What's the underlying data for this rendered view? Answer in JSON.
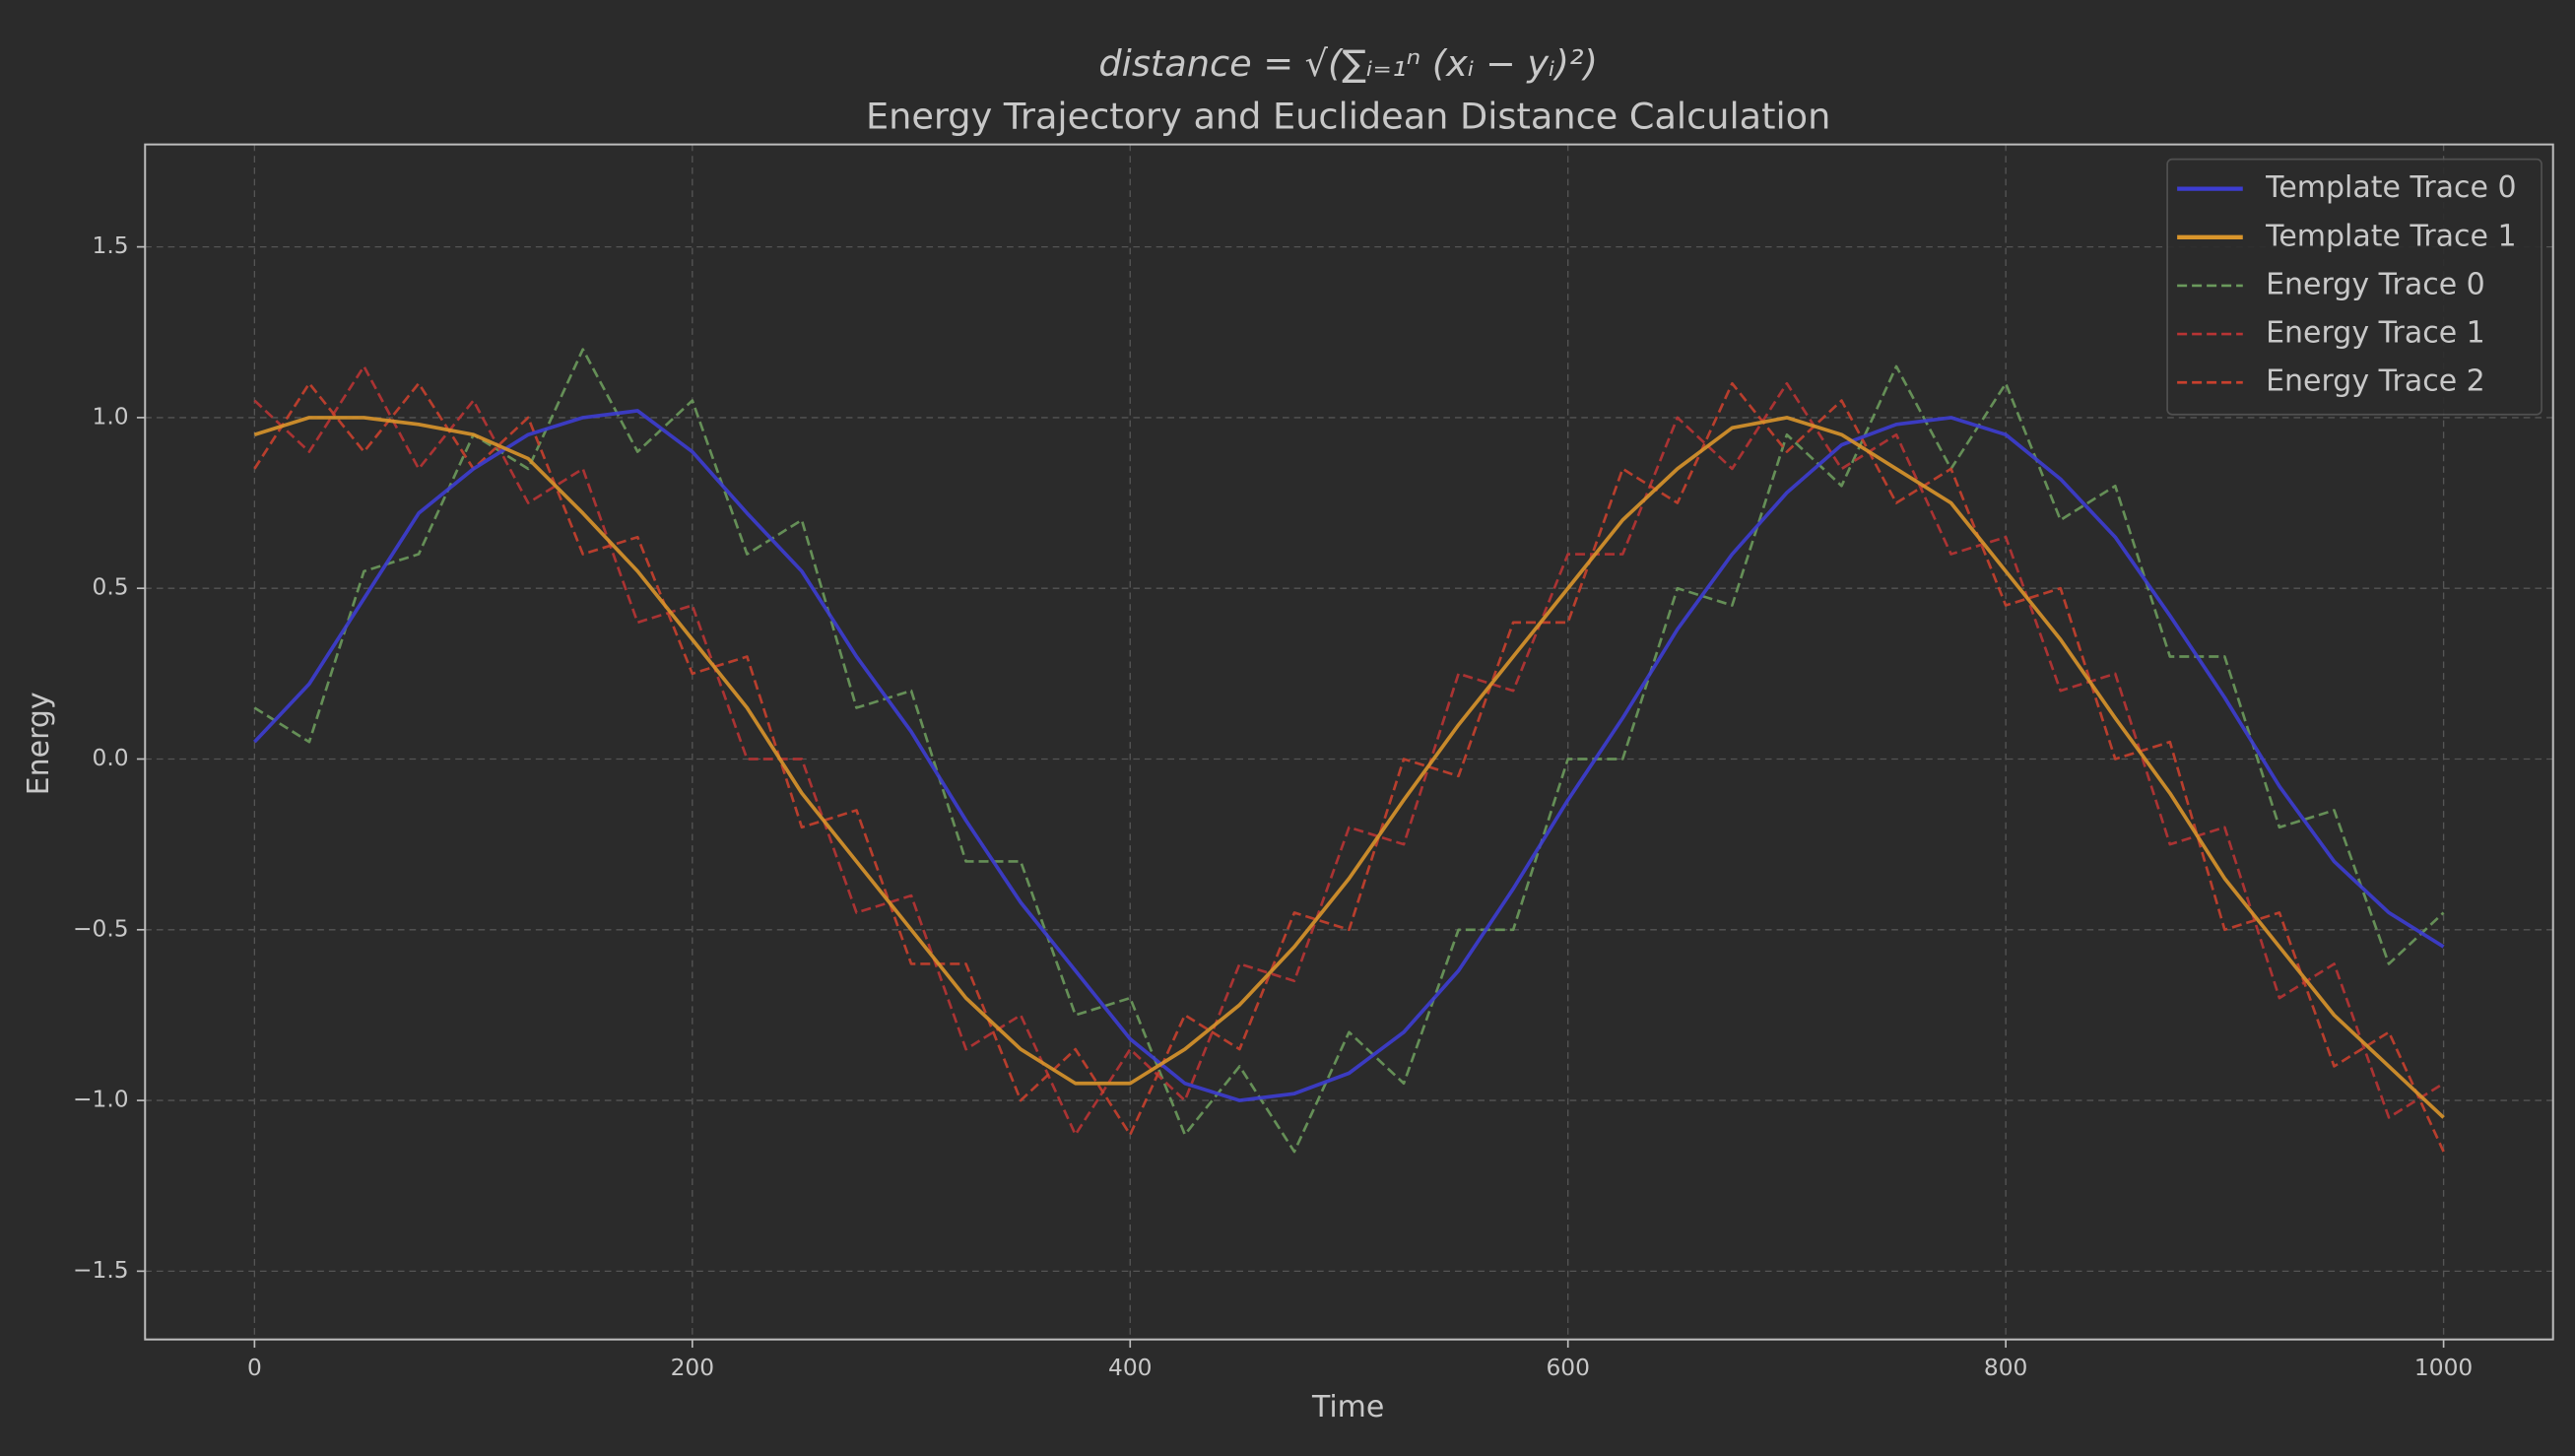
{
  "chart_data": {
    "type": "line",
    "formula": "distance = √(∑ᵢ₌₁ⁿ (xᵢ − yᵢ)²)",
    "title": "Energy Trajectory and Euclidean Distance Calculation",
    "x_label": "Time",
    "y_label": "Energy",
    "x": [
      0,
      25,
      50,
      75,
      100,
      125,
      150,
      175,
      200,
      225,
      250,
      275,
      300,
      325,
      350,
      375,
      400,
      425,
      450,
      475,
      500,
      525,
      550,
      575,
      600,
      625,
      650,
      675,
      700,
      725,
      750,
      775,
      800,
      825,
      850,
      875,
      900,
      925,
      950,
      975,
      1000
    ],
    "series": [
      {
        "name": "Energy Trace 0",
        "color": "#6b9a5c",
        "style": "dashed",
        "values": [
          0.15,
          0.05,
          0.55,
          0.6,
          0.95,
          0.85,
          1.2,
          0.9,
          1.05,
          0.6,
          0.7,
          0.15,
          0.2,
          -0.3,
          -0.3,
          -0.75,
          -0.7,
          -1.1,
          -0.9,
          -1.15,
          -0.8,
          -0.95,
          -0.5,
          -0.5,
          0.0,
          0.0,
          0.5,
          0.45,
          0.95,
          0.8,
          1.15,
          0.85,
          1.1,
          0.7,
          0.8,
          0.3,
          0.3,
          -0.2,
          -0.15,
          -0.6,
          -0.45
        ]
      },
      {
        "name": "Energy Trace 1",
        "color": "#b83434",
        "style": "dashed",
        "values": [
          1.05,
          0.9,
          1.15,
          0.85,
          1.05,
          0.75,
          0.85,
          0.4,
          0.45,
          0.0,
          0.0,
          -0.45,
          -0.4,
          -0.85,
          -0.75,
          -1.1,
          -0.85,
          -1.0,
          -0.6,
          -0.65,
          -0.2,
          -0.25,
          0.25,
          0.2,
          0.6,
          0.6,
          1.0,
          0.85,
          1.1,
          0.85,
          0.95,
          0.6,
          0.65,
          0.2,
          0.25,
          -0.25,
          -0.2,
          -0.7,
          -0.6,
          -1.05,
          -0.95
        ]
      },
      {
        "name": "Energy Trace 2",
        "color": "#c8402e",
        "style": "dashed",
        "values": [
          0.85,
          1.1,
          0.9,
          1.1,
          0.85,
          1.0,
          0.6,
          0.65,
          0.25,
          0.3,
          -0.2,
          -0.15,
          -0.6,
          -0.6,
          -1.0,
          -0.85,
          -1.1,
          -0.75,
          -0.85,
          -0.45,
          -0.5,
          0.0,
          -0.05,
          0.4,
          0.4,
          0.85,
          0.75,
          1.1,
          0.9,
          1.05,
          0.75,
          0.85,
          0.45,
          0.5,
          0.0,
          0.05,
          -0.5,
          -0.45,
          -0.9,
          -0.8,
          -1.15
        ]
      },
      {
        "name": "Template Trace 0",
        "color": "#3d3dd2",
        "style": "solid",
        "values": [
          0.05,
          0.22,
          0.47,
          0.72,
          0.85,
          0.95,
          1.0,
          1.02,
          0.9,
          0.72,
          0.55,
          0.3,
          0.08,
          -0.18,
          -0.42,
          -0.62,
          -0.82,
          -0.95,
          -1.0,
          -0.98,
          -0.92,
          -0.8,
          -0.62,
          -0.38,
          -0.12,
          0.12,
          0.38,
          0.6,
          0.78,
          0.92,
          0.98,
          1.0,
          0.95,
          0.82,
          0.65,
          0.42,
          0.18,
          -0.08,
          -0.3,
          -0.45,
          -0.55
        ]
      },
      {
        "name": "Template Trace 1",
        "color": "#d9952b",
        "style": "solid",
        "values": [
          0.95,
          1.0,
          1.0,
          0.98,
          0.95,
          0.88,
          0.72,
          0.55,
          0.35,
          0.15,
          -0.1,
          -0.3,
          -0.5,
          -0.7,
          -0.85,
          -0.95,
          -0.95,
          -0.85,
          -0.72,
          -0.55,
          -0.35,
          -0.12,
          0.1,
          0.3,
          0.5,
          0.7,
          0.85,
          0.97,
          1.0,
          0.95,
          0.85,
          0.75,
          0.55,
          0.35,
          0.12,
          -0.1,
          -0.35,
          -0.55,
          -0.75,
          -0.9,
          -1.05
        ]
      }
    ],
    "legend_order": [
      3,
      4,
      0,
      1,
      2
    ],
    "legend": "upper right",
    "xlim": [
      -50,
      1050
    ],
    "ylim": [
      -1.7,
      1.8
    ],
    "xticks": [
      0,
      200,
      400,
      600,
      800,
      1000
    ],
    "yticks": [
      {
        "value": -1.5,
        "label": "−1.5"
      },
      {
        "value": -1.0,
        "label": "−1.0"
      },
      {
        "value": -0.5,
        "label": "−0.5"
      },
      {
        "value": 0.0,
        "label": "0.0"
      },
      0.5,
      {
        "value": 1.0,
        "label": "1.0"
      },
      1.5
    ],
    "grid": true
  }
}
